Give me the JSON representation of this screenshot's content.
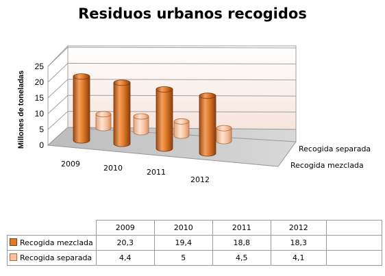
{
  "chart_data": {
    "type": "bar",
    "title": "Residuos urbanos recogidos",
    "ylabel": "Millones de toneladas",
    "xlabel": "",
    "categories": [
      "2009",
      "2010",
      "2011",
      "2012"
    ],
    "series": [
      {
        "name": "Recogida mezclada",
        "values": [
          20.3,
          19.4,
          18.8,
          18.3
        ],
        "labels": [
          "20,3",
          "19,4",
          "18,8",
          "18,3"
        ],
        "color": "#e07b2a"
      },
      {
        "name": "Recogida separada",
        "values": [
          4.4,
          5,
          4.5,
          4.1
        ],
        "labels": [
          "4,4",
          "5",
          "4,5",
          "4,1"
        ],
        "color": "#f7c29f"
      }
    ],
    "ylim": [
      0,
      25
    ],
    "yticks": [
      "0",
      "5",
      "10",
      "15",
      "20",
      "25"
    ],
    "grid": true,
    "style": "3d-cylinder",
    "legend": "data table below chart"
  }
}
